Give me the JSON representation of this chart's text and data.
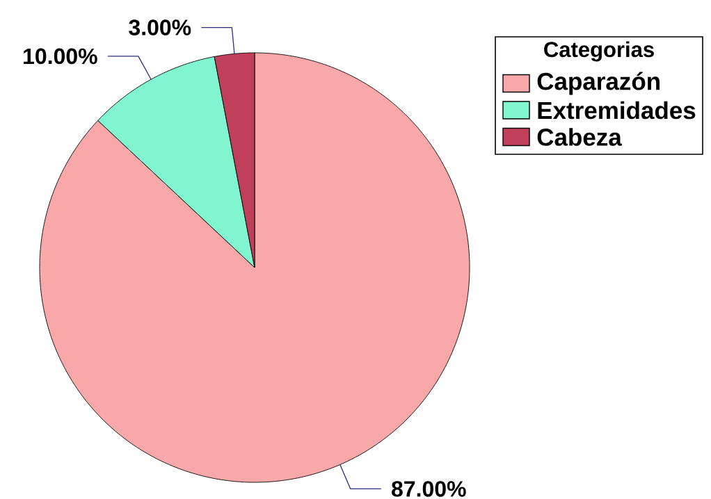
{
  "chart_data": {
    "type": "pie",
    "legend_title": "Categorias",
    "categories": [
      "Caparazón",
      "Extremidades",
      "Cabeza"
    ],
    "values": [
      87,
      10,
      3
    ],
    "colors": [
      "#f8a8a8",
      "#80f5d0",
      "#c0405c"
    ],
    "value_labels": [
      "87.00%",
      "10.00%",
      "3.00%"
    ],
    "legend": "top right"
  }
}
